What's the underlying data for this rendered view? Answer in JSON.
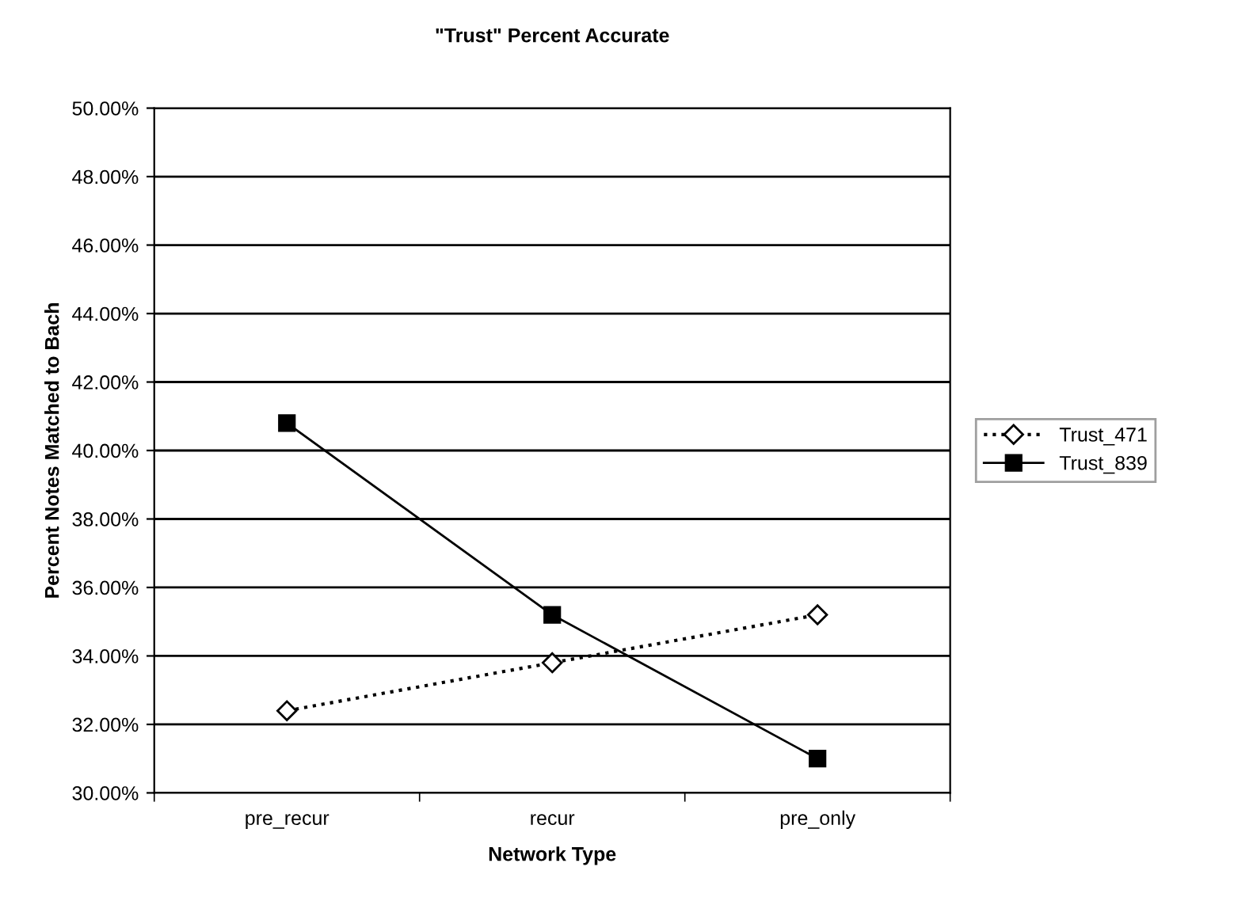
{
  "chart_data": {
    "type": "line",
    "title": "\"Trust\" Percent Accurate",
    "xlabel": "Network Type",
    "ylabel": "Percent Notes Matched to Bach",
    "categories": [
      "pre_recur",
      "recur",
      "pre_only"
    ],
    "series": [
      {
        "name": "Trust_471",
        "color": "#000000",
        "values": [
          32.4,
          33.8,
          35.2
        ],
        "marker": "diamond",
        "line_style": "dotted"
      },
      {
        "name": "Trust_839",
        "color": "#000000",
        "values": [
          40.8,
          35.2,
          31.0
        ],
        "marker": "square",
        "line_style": "solid"
      }
    ],
    "ylim": [
      30,
      50
    ],
    "yticks": [
      {
        "value": 30,
        "label": "30.00%"
      },
      {
        "value": 32,
        "label": "32.00%"
      },
      {
        "value": 34,
        "label": "34.00%"
      },
      {
        "value": 36,
        "label": "36.00%"
      },
      {
        "value": 38,
        "label": "38.00%"
      },
      {
        "value": 40,
        "label": "40.00%"
      },
      {
        "value": 42,
        "label": "42.00%"
      },
      {
        "value": 44,
        "label": "44.00%"
      },
      {
        "value": 46,
        "label": "46.00%"
      },
      {
        "value": 48,
        "label": "48.00%"
      },
      {
        "value": 50,
        "label": "50.00%"
      }
    ],
    "grid": "y",
    "legend": "right"
  }
}
